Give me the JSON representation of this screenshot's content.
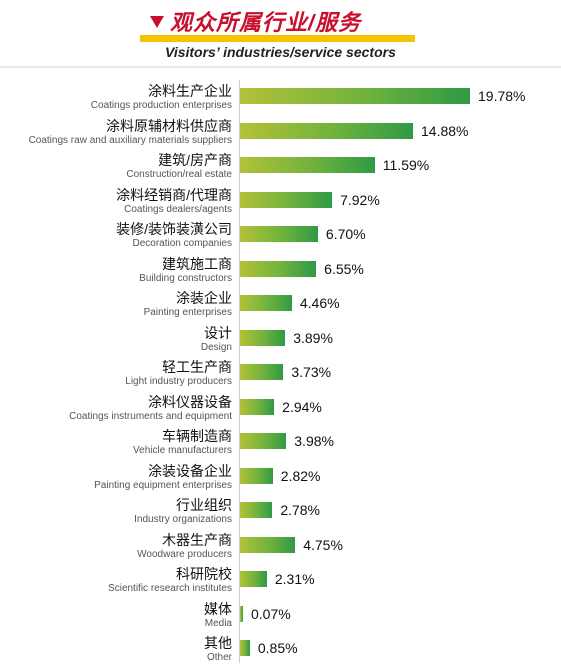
{
  "header": {
    "title_cn": "观众所属行业/服务",
    "title_en": "Visitors’ industries/service sectors"
  },
  "chart_data": {
    "type": "bar",
    "orientation": "horizontal",
    "title": "观众所属行业/服务",
    "subtitle": "Visitors’ industries/service sectors",
    "unit": "%",
    "xlim": [
      0,
      20
    ],
    "categories": [
      {
        "cn": "涂料生产企业",
        "en": "Coatings production enterprises"
      },
      {
        "cn": "涂料原辅材料供应商",
        "en": "Coatings raw and auxiliary materials suppliers"
      },
      {
        "cn": "建筑/房产商",
        "en": "Construction/real estate"
      },
      {
        "cn": "涂料经销商/代理商",
        "en": "Coatings dealers/agents"
      },
      {
        "cn": "装修/装饰装潢公司",
        "en": "Decoration companies"
      },
      {
        "cn": "建筑施工商",
        "en": "Building constructors"
      },
      {
        "cn": "涂装企业",
        "en": "Painting enterprises"
      },
      {
        "cn": "设计",
        "en": "Design"
      },
      {
        "cn": "轻工生产商",
        "en": "Light industry producers"
      },
      {
        "cn": "涂料仪器设备",
        "en": "Coatings instruments and equipment"
      },
      {
        "cn": "车辆制造商",
        "en": "Vehicle manufacturers"
      },
      {
        "cn": "涂装设备企业",
        "en": "Painting equipment enterprises"
      },
      {
        "cn": "行业组织",
        "en": "Industry organizations"
      },
      {
        "cn": "木器生产商",
        "en": "Woodware producers"
      },
      {
        "cn": "科研院校",
        "en": "Scientific research institutes"
      },
      {
        "cn": "媒体",
        "en": "Media"
      },
      {
        "cn": "其他",
        "en": "Other"
      }
    ],
    "values": [
      19.78,
      14.88,
      11.59,
      7.92,
      6.7,
      6.55,
      4.46,
      3.89,
      3.73,
      2.94,
      3.98,
      2.82,
      2.78,
      4.75,
      2.31,
      0.07,
      0.85
    ],
    "value_labels": [
      "19.78%",
      "14.88%",
      "11.59%",
      "7.92%",
      "6.70%",
      "6.55%",
      "4.46%",
      "3.89%",
      "3.73%",
      "2.94%",
      "3.98%",
      "2.82%",
      "2.78%",
      "4.75%",
      "2.31%",
      "0.07%",
      "0.85%"
    ],
    "colors": {
      "bar_start": "#b3c138",
      "bar_end": "#2f9a45",
      "title": "#c8102e",
      "band": "#f5c400"
    },
    "grid": false,
    "legend": "none"
  }
}
